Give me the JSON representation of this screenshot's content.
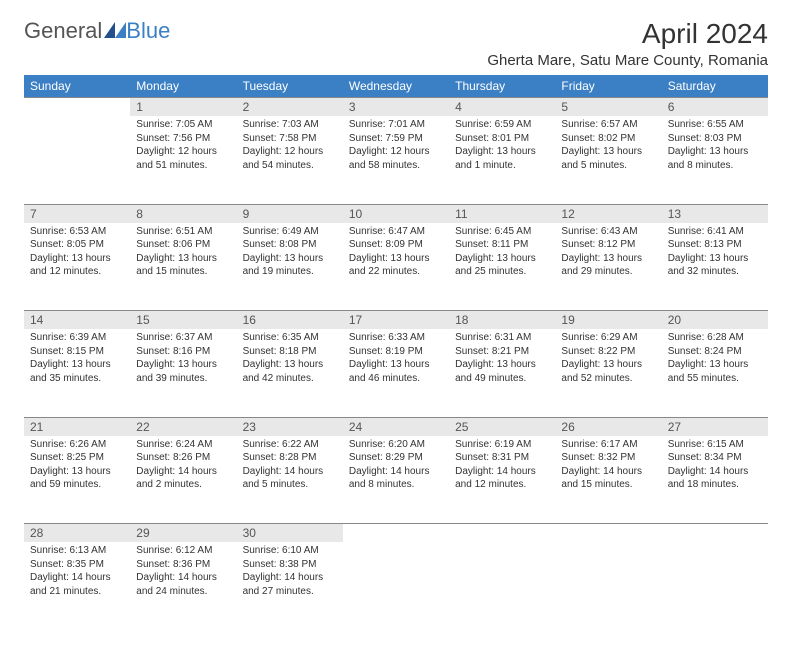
{
  "brand": {
    "part1": "General",
    "part2": "Blue"
  },
  "title": "April 2024",
  "location": "Gherta Mare, Satu Mare County, Romania",
  "colors": {
    "header_bg": "#3b7fc4",
    "header_text": "#ffffff",
    "daynum_bg": "#e8e8e8",
    "text": "#333333",
    "page_bg": "#ffffff"
  },
  "day_headers": [
    "Sunday",
    "Monday",
    "Tuesday",
    "Wednesday",
    "Thursday",
    "Friday",
    "Saturday"
  ],
  "weeks": [
    {
      "nums": [
        "",
        "1",
        "2",
        "3",
        "4",
        "5",
        "6"
      ],
      "cells": [
        {
          "sunrise": "",
          "sunset": "",
          "daylight1": "",
          "daylight2": ""
        },
        {
          "sunrise": "Sunrise: 7:05 AM",
          "sunset": "Sunset: 7:56 PM",
          "daylight1": "Daylight: 12 hours",
          "daylight2": "and 51 minutes."
        },
        {
          "sunrise": "Sunrise: 7:03 AM",
          "sunset": "Sunset: 7:58 PM",
          "daylight1": "Daylight: 12 hours",
          "daylight2": "and 54 minutes."
        },
        {
          "sunrise": "Sunrise: 7:01 AM",
          "sunset": "Sunset: 7:59 PM",
          "daylight1": "Daylight: 12 hours",
          "daylight2": "and 58 minutes."
        },
        {
          "sunrise": "Sunrise: 6:59 AM",
          "sunset": "Sunset: 8:01 PM",
          "daylight1": "Daylight: 13 hours",
          "daylight2": "and 1 minute."
        },
        {
          "sunrise": "Sunrise: 6:57 AM",
          "sunset": "Sunset: 8:02 PM",
          "daylight1": "Daylight: 13 hours",
          "daylight2": "and 5 minutes."
        },
        {
          "sunrise": "Sunrise: 6:55 AM",
          "sunset": "Sunset: 8:03 PM",
          "daylight1": "Daylight: 13 hours",
          "daylight2": "and 8 minutes."
        }
      ]
    },
    {
      "nums": [
        "7",
        "8",
        "9",
        "10",
        "11",
        "12",
        "13"
      ],
      "cells": [
        {
          "sunrise": "Sunrise: 6:53 AM",
          "sunset": "Sunset: 8:05 PM",
          "daylight1": "Daylight: 13 hours",
          "daylight2": "and 12 minutes."
        },
        {
          "sunrise": "Sunrise: 6:51 AM",
          "sunset": "Sunset: 8:06 PM",
          "daylight1": "Daylight: 13 hours",
          "daylight2": "and 15 minutes."
        },
        {
          "sunrise": "Sunrise: 6:49 AM",
          "sunset": "Sunset: 8:08 PM",
          "daylight1": "Daylight: 13 hours",
          "daylight2": "and 19 minutes."
        },
        {
          "sunrise": "Sunrise: 6:47 AM",
          "sunset": "Sunset: 8:09 PM",
          "daylight1": "Daylight: 13 hours",
          "daylight2": "and 22 minutes."
        },
        {
          "sunrise": "Sunrise: 6:45 AM",
          "sunset": "Sunset: 8:11 PM",
          "daylight1": "Daylight: 13 hours",
          "daylight2": "and 25 minutes."
        },
        {
          "sunrise": "Sunrise: 6:43 AM",
          "sunset": "Sunset: 8:12 PM",
          "daylight1": "Daylight: 13 hours",
          "daylight2": "and 29 minutes."
        },
        {
          "sunrise": "Sunrise: 6:41 AM",
          "sunset": "Sunset: 8:13 PM",
          "daylight1": "Daylight: 13 hours",
          "daylight2": "and 32 minutes."
        }
      ]
    },
    {
      "nums": [
        "14",
        "15",
        "16",
        "17",
        "18",
        "19",
        "20"
      ],
      "cells": [
        {
          "sunrise": "Sunrise: 6:39 AM",
          "sunset": "Sunset: 8:15 PM",
          "daylight1": "Daylight: 13 hours",
          "daylight2": "and 35 minutes."
        },
        {
          "sunrise": "Sunrise: 6:37 AM",
          "sunset": "Sunset: 8:16 PM",
          "daylight1": "Daylight: 13 hours",
          "daylight2": "and 39 minutes."
        },
        {
          "sunrise": "Sunrise: 6:35 AM",
          "sunset": "Sunset: 8:18 PM",
          "daylight1": "Daylight: 13 hours",
          "daylight2": "and 42 minutes."
        },
        {
          "sunrise": "Sunrise: 6:33 AM",
          "sunset": "Sunset: 8:19 PM",
          "daylight1": "Daylight: 13 hours",
          "daylight2": "and 46 minutes."
        },
        {
          "sunrise": "Sunrise: 6:31 AM",
          "sunset": "Sunset: 8:21 PM",
          "daylight1": "Daylight: 13 hours",
          "daylight2": "and 49 minutes."
        },
        {
          "sunrise": "Sunrise: 6:29 AM",
          "sunset": "Sunset: 8:22 PM",
          "daylight1": "Daylight: 13 hours",
          "daylight2": "and 52 minutes."
        },
        {
          "sunrise": "Sunrise: 6:28 AM",
          "sunset": "Sunset: 8:24 PM",
          "daylight1": "Daylight: 13 hours",
          "daylight2": "and 55 minutes."
        }
      ]
    },
    {
      "nums": [
        "21",
        "22",
        "23",
        "24",
        "25",
        "26",
        "27"
      ],
      "cells": [
        {
          "sunrise": "Sunrise: 6:26 AM",
          "sunset": "Sunset: 8:25 PM",
          "daylight1": "Daylight: 13 hours",
          "daylight2": "and 59 minutes."
        },
        {
          "sunrise": "Sunrise: 6:24 AM",
          "sunset": "Sunset: 8:26 PM",
          "daylight1": "Daylight: 14 hours",
          "daylight2": "and 2 minutes."
        },
        {
          "sunrise": "Sunrise: 6:22 AM",
          "sunset": "Sunset: 8:28 PM",
          "daylight1": "Daylight: 14 hours",
          "daylight2": "and 5 minutes."
        },
        {
          "sunrise": "Sunrise: 6:20 AM",
          "sunset": "Sunset: 8:29 PM",
          "daylight1": "Daylight: 14 hours",
          "daylight2": "and 8 minutes."
        },
        {
          "sunrise": "Sunrise: 6:19 AM",
          "sunset": "Sunset: 8:31 PM",
          "daylight1": "Daylight: 14 hours",
          "daylight2": "and 12 minutes."
        },
        {
          "sunrise": "Sunrise: 6:17 AM",
          "sunset": "Sunset: 8:32 PM",
          "daylight1": "Daylight: 14 hours",
          "daylight2": "and 15 minutes."
        },
        {
          "sunrise": "Sunrise: 6:15 AM",
          "sunset": "Sunset: 8:34 PM",
          "daylight1": "Daylight: 14 hours",
          "daylight2": "and 18 minutes."
        }
      ]
    },
    {
      "nums": [
        "28",
        "29",
        "30",
        "",
        "",
        "",
        ""
      ],
      "cells": [
        {
          "sunrise": "Sunrise: 6:13 AM",
          "sunset": "Sunset: 8:35 PM",
          "daylight1": "Daylight: 14 hours",
          "daylight2": "and 21 minutes."
        },
        {
          "sunrise": "Sunrise: 6:12 AM",
          "sunset": "Sunset: 8:36 PM",
          "daylight1": "Daylight: 14 hours",
          "daylight2": "and 24 minutes."
        },
        {
          "sunrise": "Sunrise: 6:10 AM",
          "sunset": "Sunset: 8:38 PM",
          "daylight1": "Daylight: 14 hours",
          "daylight2": "and 27 minutes."
        },
        {
          "sunrise": "",
          "sunset": "",
          "daylight1": "",
          "daylight2": ""
        },
        {
          "sunrise": "",
          "sunset": "",
          "daylight1": "",
          "daylight2": ""
        },
        {
          "sunrise": "",
          "sunset": "",
          "daylight1": "",
          "daylight2": ""
        },
        {
          "sunrise": "",
          "sunset": "",
          "daylight1": "",
          "daylight2": ""
        }
      ]
    }
  ]
}
